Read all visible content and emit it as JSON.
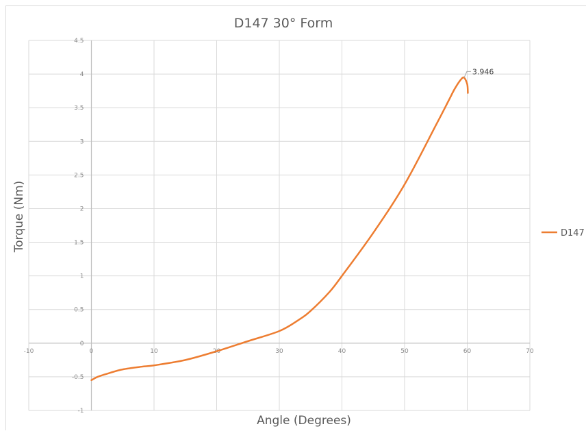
{
  "chart_data": {
    "type": "line",
    "title": "D147 30° Form",
    "xlabel": "Angle (Degrees)",
    "ylabel": "Torque (Nm)",
    "xlim": [
      -10,
      70
    ],
    "ylim": [
      -1,
      4.5
    ],
    "x_ticks": [
      "-10",
      "0",
      "10",
      "20",
      "30",
      "40",
      "50",
      "60",
      "70"
    ],
    "y_ticks": [
      "-1",
      "-0.5",
      "0",
      "0.5",
      "1",
      "1.5",
      "2",
      "2.5",
      "3",
      "3.5",
      "4",
      "4.5"
    ],
    "grid": true,
    "legend_position": "right",
    "series": [
      {
        "name": "D147",
        "color": "#ed7d31",
        "x": [
          0,
          1,
          3,
          5,
          8,
          10,
          15,
          20,
          25,
          30,
          33,
          35,
          38,
          40,
          45,
          50,
          55,
          57,
          58,
          59,
          59.5,
          60,
          60.1
        ],
        "y": [
          -0.55,
          -0.5,
          -0.44,
          -0.39,
          -0.35,
          -0.33,
          -0.25,
          -0.12,
          0.03,
          0.18,
          0.34,
          0.48,
          0.76,
          1.0,
          1.64,
          2.36,
          3.24,
          3.6,
          3.78,
          3.92,
          3.946,
          3.85,
          3.72
        ]
      }
    ],
    "annotations": [
      {
        "text": "3.946",
        "x": 59.5,
        "y": 3.946
      }
    ]
  }
}
